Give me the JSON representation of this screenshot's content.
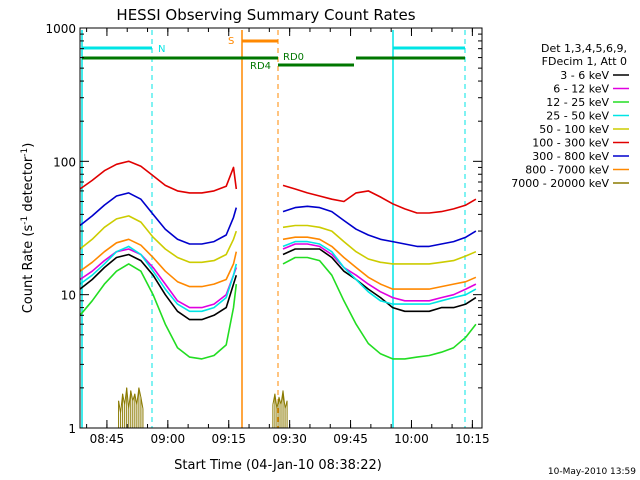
{
  "colors": {
    "black": "#000000",
    "magenta": "#e000e0",
    "green": "#22dd22",
    "cyan": "#00e5e5",
    "yellow": "#cccc00",
    "orange_red": "#ff6a00",
    "red": "#e00000",
    "blue": "#0000cc",
    "orange": "#ff8800",
    "olive": "#8a7a00",
    "dark_green": "#007700"
  },
  "chart_data": {
    "type": "line",
    "title": "HESSI Observing Summary Count Rates",
    "xlabel": "Start Time (04-Jan-10 08:38:22)",
    "ylabel_main": "Count Rate (s",
    "ylabel_sup1": "-1",
    "ylabel_mid": " detector",
    "ylabel_sup2": "-1",
    "ylabel_end": ")",
    "yscale": "log",
    "ylim": [
      1,
      1000
    ],
    "xlim_minutes_after_0838": [
      0,
      99
    ],
    "x_ticks": [
      "08:45",
      "09:00",
      "09:15",
      "09:30",
      "09:45",
      "10:00",
      "10:15"
    ],
    "y_ticks": [
      "1000",
      "100",
      "10",
      "1"
    ],
    "legend_header": [
      "Det 1,3,4,5,6,9,",
      "FDecim 1, Att 0"
    ],
    "legend": [
      {
        "label": "3 - 6 keV",
        "color": "#000000"
      },
      {
        "label": "6 - 12 keV",
        "color": "#e000e0"
      },
      {
        "label": "12 - 25 keV",
        "color": "#22dd22"
      },
      {
        "label": "25 - 50 keV",
        "color": "#00e5e5"
      },
      {
        "label": "50 - 100 keV",
        "color": "#cccc00"
      },
      {
        "label": "100 - 300 keV",
        "color": "#e00000"
      },
      {
        "label": "300 - 800 keV",
        "color": "#0000cc"
      },
      {
        "label": "800 - 7000 keV",
        "color": "#ff8800"
      },
      {
        "label": "7000 - 20000 keV",
        "color": "#8a7a00"
      }
    ],
    "flags": [
      {
        "label": "N",
        "color": "#00e5e5"
      },
      {
        "label": "S",
        "color": "#ff8800"
      },
      {
        "label": "RD4",
        "color": "#007700"
      },
      {
        "label": "RD0",
        "color": "#007700"
      }
    ],
    "series": [
      {
        "name": "3 - 6 keV",
        "color": "#000000",
        "x": [
          0,
          3,
          6,
          9,
          12,
          15,
          18,
          21,
          24,
          27,
          30,
          33,
          36,
          37.8,
          38.5,
          50,
          53,
          56,
          59,
          62,
          65,
          68,
          71,
          74,
          77,
          80,
          83,
          86,
          89,
          92,
          95,
          97.5
        ],
        "y": [
          11,
          13,
          16,
          19,
          20,
          18,
          14,
          10,
          7.5,
          6.5,
          6.5,
          7,
          8,
          12,
          14,
          20,
          22,
          22,
          22,
          19,
          15,
          13,
          11,
          9.5,
          8,
          7.5,
          7.5,
          7.5,
          8,
          8,
          8.5,
          9.5
        ]
      },
      {
        "name": "6 - 12 keV",
        "color": "#e000e0",
        "x": [
          0,
          3,
          6,
          9,
          12,
          15,
          18,
          21,
          24,
          27,
          30,
          33,
          36,
          37.8,
          38.5,
          50,
          53,
          56,
          59,
          62,
          65,
          68,
          71,
          74,
          77,
          80,
          83,
          86,
          89,
          92,
          95,
          97.5
        ],
        "y": [
          13,
          15,
          18,
          21,
          22,
          20,
          16,
          12,
          9,
          8,
          8,
          8.5,
          10,
          14,
          16,
          22,
          24,
          24,
          23,
          20,
          16,
          14,
          12,
          10.5,
          9.5,
          9,
          9,
          9,
          9.5,
          10,
          11,
          12
        ]
      },
      {
        "name": "12 - 25 keV",
        "color": "#22dd22",
        "x": [
          0,
          3,
          6,
          9,
          12,
          15,
          18,
          21,
          24,
          27,
          30,
          33,
          36,
          37.8,
          38.5,
          50,
          53,
          56,
          59,
          62,
          65,
          68,
          71,
          74,
          77,
          80,
          83,
          86,
          89,
          92,
          95,
          97.5
        ],
        "y": [
          7,
          9,
          12,
          15,
          17,
          15,
          10,
          6,
          4,
          3.4,
          3.3,
          3.5,
          4.2,
          8,
          12,
          17,
          19,
          19,
          18,
          14,
          9,
          6,
          4.3,
          3.6,
          3.3,
          3.3,
          3.4,
          3.5,
          3.7,
          4,
          4.8,
          6
        ]
      },
      {
        "name": "25 - 50 keV",
        "color": "#00e5e5",
        "x": [
          0,
          3,
          6,
          9,
          12,
          15,
          18,
          21,
          24,
          27,
          30,
          33,
          36,
          37.8,
          38.5,
          50,
          53,
          56,
          59,
          62,
          65,
          68,
          71,
          74,
          77,
          80,
          83,
          86,
          89,
          92,
          95,
          97.5
        ],
        "y": [
          12,
          14,
          17,
          21,
          23,
          20,
          15,
          11,
          8.5,
          7.5,
          7.5,
          8,
          9.5,
          14,
          17,
          23,
          25,
          25,
          24,
          21,
          16,
          13,
          10.5,
          9,
          8.5,
          8.5,
          8.5,
          8.5,
          9,
          9.5,
          10,
          11
        ]
      },
      {
        "name": "50 - 100 keV",
        "color": "#cccc00",
        "x": [
          0,
          3,
          6,
          9,
          12,
          15,
          18,
          21,
          24,
          27,
          30,
          33,
          36,
          37.8,
          38.5,
          50,
          53,
          56,
          59,
          62,
          65,
          68,
          71,
          74,
          77,
          80,
          83,
          86,
          89,
          92,
          95,
          97.5
        ],
        "y": [
          22,
          26,
          32,
          37,
          39,
          35,
          27,
          22,
          19,
          17.5,
          17.5,
          18,
          20,
          26,
          30,
          32,
          33,
          33,
          32,
          30,
          25,
          21,
          18.5,
          17.5,
          17,
          17,
          17,
          17,
          17.5,
          18,
          19.5,
          21
        ]
      },
      {
        "name": "100 - 300 keV",
        "color": "#e00000",
        "x": [
          0,
          3,
          6,
          9,
          12,
          15,
          18,
          21,
          24,
          27,
          30,
          33,
          36,
          37.8,
          38.5,
          50,
          53,
          56,
          59,
          62,
          65,
          68,
          71,
          74,
          77,
          80,
          83,
          86,
          89,
          92,
          95,
          97.5
        ],
        "y": [
          62,
          72,
          85,
          95,
          100,
          92,
          78,
          66,
          60,
          58,
          58,
          60,
          65,
          90,
          62,
          66,
          62,
          58,
          55,
          52,
          50,
          58,
          60,
          54,
          48,
          44,
          41,
          41,
          42,
          44,
          47,
          52
        ]
      },
      {
        "name": "300 - 800 keV",
        "color": "#0000cc",
        "x": [
          0,
          3,
          6,
          9,
          12,
          15,
          18,
          21,
          24,
          27,
          30,
          33,
          36,
          37.8,
          38.5,
          50,
          53,
          56,
          59,
          62,
          65,
          68,
          71,
          74,
          77,
          80,
          83,
          86,
          89,
          92,
          95,
          97.5
        ],
        "y": [
          33,
          39,
          47,
          55,
          58,
          52,
          40,
          31,
          26,
          24,
          24,
          25,
          28,
          38,
          45,
          42,
          45,
          46,
          45,
          42,
          36,
          31,
          28,
          26,
          25,
          24,
          23,
          23,
          24,
          25,
          27,
          30
        ]
      },
      {
        "name": "800 - 7000 keV",
        "color": "#ff8800",
        "x": [
          0,
          3,
          6,
          9,
          12,
          15,
          18,
          21,
          24,
          27,
          30,
          33,
          36,
          37.8,
          38.5,
          50,
          53,
          56,
          59,
          62,
          65,
          68,
          71,
          74,
          77,
          80,
          83,
          86,
          89,
          92,
          95,
          97.5
        ],
        "y": [
          15,
          17.5,
          21,
          24.5,
          26,
          23.5,
          19,
          15,
          12.5,
          11.5,
          11.5,
          12,
          13,
          17,
          21,
          26,
          27,
          27,
          26,
          23,
          19,
          16,
          13.5,
          12,
          11,
          11,
          11,
          11,
          11.5,
          12,
          12.5,
          13.5
        ]
      },
      {
        "name": "7000 - 20000 keV",
        "color": "#8a7a00",
        "x": [
          9.5,
          10,
          10.5,
          11,
          11.5,
          12,
          12.5,
          13,
          13.5,
          14,
          14.5,
          15,
          15.5,
          47.5,
          48,
          48.5,
          49,
          49.5,
          50,
          50.5,
          51
        ],
        "y": [
          1.6,
          1.3,
          1.8,
          1.5,
          2.0,
          1.4,
          1.9,
          1.6,
          1.8,
          1.5,
          2.0,
          1.7,
          1.4,
          1.5,
          1.8,
          1.4,
          1.7,
          1.5,
          1.9,
          1.4,
          1.6
        ]
      }
    ]
  },
  "footer": {
    "date_stamp": "10-May-2010 13:59"
  }
}
